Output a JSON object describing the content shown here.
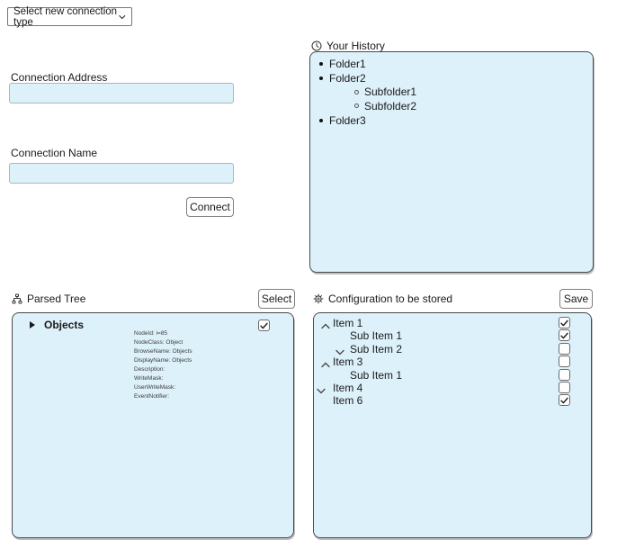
{
  "colors": {
    "panel_bg": "#ddf1fb"
  },
  "connection_type_dropdown": {
    "label": "Select new connection type"
  },
  "connection_form": {
    "address_label": "Connection Address",
    "address_value": "",
    "name_label": "Connection Name",
    "name_value": "",
    "connect_label": "Connect"
  },
  "history": {
    "title": "Your History",
    "icon": "clock-icon",
    "items": [
      {
        "label": "Folder1",
        "level": 1
      },
      {
        "label": "Folder2",
        "level": 1
      },
      {
        "label": "Subfolder1",
        "level": 2
      },
      {
        "label": "Subfolder2",
        "level": 2
      },
      {
        "label": "Folder3",
        "level": 1
      }
    ]
  },
  "parsed_tree": {
    "title": "Parsed Tree",
    "icon": "sitemap-icon",
    "select_button_label": "Select",
    "root_node": {
      "label": "Objects",
      "expander": "collapsed",
      "checked": true
    },
    "node_details": [
      "NodeId: i=85",
      "NodeClass: Object",
      "BrowseName: Objects",
      "DisplayName: Objects",
      "Description:",
      "WriteMask:",
      "UserWriteMask:",
      "EventNotifier:"
    ]
  },
  "configuration": {
    "title": "Configuration to be stored",
    "icon": "gear-icon",
    "save_button_label": "Save",
    "items": [
      {
        "label": "Item 1",
        "chevron": "up",
        "chevron_col": 1,
        "label_col": 1,
        "checked": true
      },
      {
        "label": "Sub Item 1",
        "chevron": "none",
        "chevron_col": 0,
        "label_col": 2,
        "checked": true
      },
      {
        "label": "Sub Item 2",
        "chevron": "down",
        "chevron_col": 2,
        "label_col": 2,
        "checked": false
      },
      {
        "label": "Item 3",
        "chevron": "up",
        "chevron_col": 1,
        "label_col": 1,
        "checked": false
      },
      {
        "label": "Sub Item 1",
        "chevron": "none",
        "chevron_col": 0,
        "label_col": 2,
        "checked": false
      },
      {
        "label": "Item 4",
        "chevron": "down",
        "chevron_col": 0,
        "label_col": 1,
        "checked": false
      },
      {
        "label": "Item 6",
        "chevron": "none",
        "chevron_col": 0,
        "label_col": 1,
        "checked": true
      }
    ]
  }
}
